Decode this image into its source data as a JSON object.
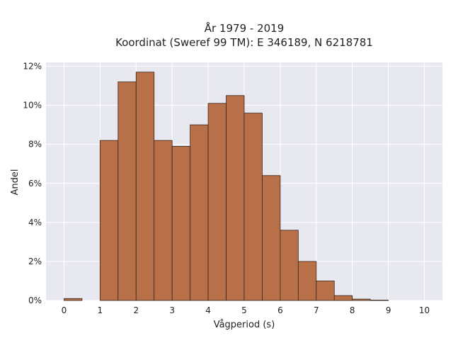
{
  "chart_data": {
    "type": "bar",
    "title_lines": [
      "År 1979 - 2019",
      "Koordinat (Sweref 99 TM): E 346189, N 6218781"
    ],
    "xlabel": "Vågperiod (s)",
    "ylabel": "Andel",
    "xlim": [
      -0.5,
      10.5
    ],
    "ylim": [
      0,
      0.122
    ],
    "x_ticks": [
      0,
      1,
      2,
      3,
      4,
      5,
      6,
      7,
      8,
      9,
      10
    ],
    "x_tick_labels": [
      "0",
      "1",
      "2",
      "3",
      "4",
      "5",
      "6",
      "7",
      "8",
      "9",
      "10"
    ],
    "y_ticks": [
      0,
      0.02,
      0.04,
      0.06,
      0.08,
      0.1,
      0.12
    ],
    "y_tick_labels": [
      "0%",
      "2%",
      "4%",
      "6%",
      "8%",
      "10%",
      "12%"
    ],
    "bin_width": 0.5,
    "bins": [
      {
        "start": 0.0,
        "value": 0.001
      },
      {
        "start": 0.5,
        "value": 0.0
      },
      {
        "start": 1.0,
        "value": 0.082
      },
      {
        "start": 1.5,
        "value": 0.112
      },
      {
        "start": 2.0,
        "value": 0.117
      },
      {
        "start": 2.5,
        "value": 0.082
      },
      {
        "start": 3.0,
        "value": 0.079
      },
      {
        "start": 3.5,
        "value": 0.09
      },
      {
        "start": 4.0,
        "value": 0.101
      },
      {
        "start": 4.5,
        "value": 0.105
      },
      {
        "start": 5.0,
        "value": 0.096
      },
      {
        "start": 5.5,
        "value": 0.064
      },
      {
        "start": 6.0,
        "value": 0.036
      },
      {
        "start": 6.5,
        "value": 0.02
      },
      {
        "start": 7.0,
        "value": 0.01
      },
      {
        "start": 7.5,
        "value": 0.0025
      },
      {
        "start": 8.0,
        "value": 0.0007
      },
      {
        "start": 8.5,
        "value": 0.0002
      },
      {
        "start": 9.0,
        "value": 0.0
      },
      {
        "start": 9.5,
        "value": 0.0
      }
    ],
    "grid": true,
    "colors": {
      "background": "#e8e8f0",
      "grid": "#ffffff",
      "bar_fill": "#b87048",
      "bar_edge": "#3a2418"
    }
  }
}
